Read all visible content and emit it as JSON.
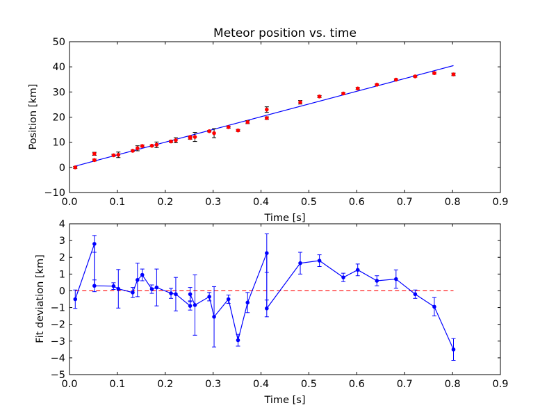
{
  "chart_data": [
    {
      "type": "scatter",
      "title": "Meteor position vs. time",
      "xlabel": "Time [s]",
      "ylabel": "Position [km]",
      "xlim": [
        0,
        0.9
      ],
      "ylim": [
        -10,
        50
      ],
      "xticks": [
        "0.0",
        "0.1",
        "0.2",
        "0.3",
        "0.4",
        "0.5",
        "0.6",
        "0.7",
        "0.8",
        "0.9"
      ],
      "yticks": [
        "−10",
        "0",
        "10",
        "20",
        "30",
        "40",
        "50"
      ],
      "grid": false,
      "colors": {
        "points": "#ff0000",
        "fit": "#0000ff"
      },
      "points": [
        {
          "x": 0.012,
          "y": 0.0,
          "err": 0.4
        },
        {
          "x": 0.052,
          "y": 5.4,
          "err": 0.6
        },
        {
          "x": 0.052,
          "y": 2.9,
          "err": 0.4
        },
        {
          "x": 0.092,
          "y": 4.8,
          "err": 0.4
        },
        {
          "x": 0.102,
          "y": 5.0,
          "err": 1.1
        },
        {
          "x": 0.132,
          "y": 6.6,
          "err": 0.3
        },
        {
          "x": 0.142,
          "y": 7.6,
          "err": 1.0
        },
        {
          "x": 0.152,
          "y": 8.5,
          "err": 0.4
        },
        {
          "x": 0.172,
          "y": 8.6,
          "err": 0.3
        },
        {
          "x": 0.182,
          "y": 9.0,
          "err": 1.1
        },
        {
          "x": 0.212,
          "y": 10.3,
          "err": 0.4
        },
        {
          "x": 0.222,
          "y": 10.8,
          "err": 1.0
        },
        {
          "x": 0.252,
          "y": 11.7,
          "err": 0.5
        },
        {
          "x": 0.252,
          "y": 12.1,
          "err": 0.3
        },
        {
          "x": 0.262,
          "y": 12.1,
          "err": 1.8
        },
        {
          "x": 0.292,
          "y": 14.4,
          "err": 0.3
        },
        {
          "x": 0.302,
          "y": 13.6,
          "err": 1.8
        },
        {
          "x": 0.332,
          "y": 16.0,
          "err": 0.4
        },
        {
          "x": 0.352,
          "y": 14.7,
          "err": 0.4
        },
        {
          "x": 0.372,
          "y": 18.0,
          "err": 0.6
        },
        {
          "x": 0.412,
          "y": 23.0,
          "err": 1.1
        },
        {
          "x": 0.412,
          "y": 19.6,
          "err": 0.5
        },
        {
          "x": 0.482,
          "y": 25.9,
          "err": 0.7
        },
        {
          "x": 0.522,
          "y": 28.2,
          "err": 0.4
        },
        {
          "x": 0.572,
          "y": 29.4,
          "err": 0.3
        },
        {
          "x": 0.602,
          "y": 31.4,
          "err": 0.4
        },
        {
          "x": 0.642,
          "y": 32.9,
          "err": 0.3
        },
        {
          "x": 0.682,
          "y": 34.9,
          "err": 0.3
        },
        {
          "x": 0.722,
          "y": 36.2,
          "err": 0.3
        },
        {
          "x": 0.762,
          "y": 37.5,
          "err": 0.4
        },
        {
          "x": 0.802,
          "y": 37.0,
          "err": 0.5
        }
      ],
      "fit_line": {
        "x": [
          0.012,
          0.802
        ],
        "y": [
          0.5,
          40.5
        ]
      }
    },
    {
      "type": "line",
      "xlabel": "Time [s]",
      "ylabel": "Fit deviation [km]",
      "xlim": [
        0,
        0.9
      ],
      "ylim": [
        -5,
        4
      ],
      "xticks": [
        "0.0",
        "0.1",
        "0.2",
        "0.3",
        "0.4",
        "0.5",
        "0.6",
        "0.7",
        "0.8",
        "0.9"
      ],
      "yticks": [
        "−5",
        "−4",
        "−3",
        "−2",
        "−1",
        "0",
        "1",
        "2",
        "3",
        "4"
      ],
      "grid": false,
      "colors": {
        "series": "#0000ff",
        "zero_line": "#ff0000"
      },
      "zero_line": 0,
      "points": [
        {
          "x": 0.012,
          "y": -0.5,
          "err": 0.55
        },
        {
          "x": 0.052,
          "y": 2.8,
          "err": 0.5
        },
        {
          "x": 0.052,
          "y": 0.3,
          "err": 0.35
        },
        {
          "x": 0.092,
          "y": 0.28,
          "err": 0.2
        },
        {
          "x": 0.102,
          "y": 0.12,
          "err": 1.15
        },
        {
          "x": 0.132,
          "y": -0.1,
          "err": 0.3
        },
        {
          "x": 0.142,
          "y": 0.65,
          "err": 1.0
        },
        {
          "x": 0.152,
          "y": 0.95,
          "err": 0.35
        },
        {
          "x": 0.172,
          "y": 0.1,
          "err": 0.25
        },
        {
          "x": 0.182,
          "y": 0.2,
          "err": 1.1
        },
        {
          "x": 0.212,
          "y": -0.15,
          "err": 0.3
        },
        {
          "x": 0.222,
          "y": -0.2,
          "err": 1.0
        },
        {
          "x": 0.252,
          "y": -0.9,
          "err": 0.25
        },
        {
          "x": 0.252,
          "y": -0.2,
          "err": 0.4
        },
        {
          "x": 0.262,
          "y": -0.85,
          "err": 1.8
        },
        {
          "x": 0.292,
          "y": -0.35,
          "err": 0.25
        },
        {
          "x": 0.302,
          "y": -1.55,
          "err": 1.8
        },
        {
          "x": 0.332,
          "y": -0.5,
          "err": 0.25
        },
        {
          "x": 0.352,
          "y": -2.95,
          "err": 0.35
        },
        {
          "x": 0.372,
          "y": -0.7,
          "err": 0.6
        },
        {
          "x": 0.412,
          "y": 2.25,
          "err": 1.15
        },
        {
          "x": 0.412,
          "y": -1.05,
          "err": 0.5
        },
        {
          "x": 0.482,
          "y": 1.65,
          "err": 0.65
        },
        {
          "x": 0.522,
          "y": 1.8,
          "err": 0.35
        },
        {
          "x": 0.572,
          "y": 0.8,
          "err": 0.25
        },
        {
          "x": 0.602,
          "y": 1.25,
          "err": 0.35
        },
        {
          "x": 0.642,
          "y": 0.6,
          "err": 0.3
        },
        {
          "x": 0.682,
          "y": 0.7,
          "err": 0.55
        },
        {
          "x": 0.722,
          "y": -0.2,
          "err": 0.25
        },
        {
          "x": 0.762,
          "y": -0.95,
          "err": 0.55
        },
        {
          "x": 0.802,
          "y": -3.5,
          "err": 0.65
        }
      ]
    }
  ]
}
